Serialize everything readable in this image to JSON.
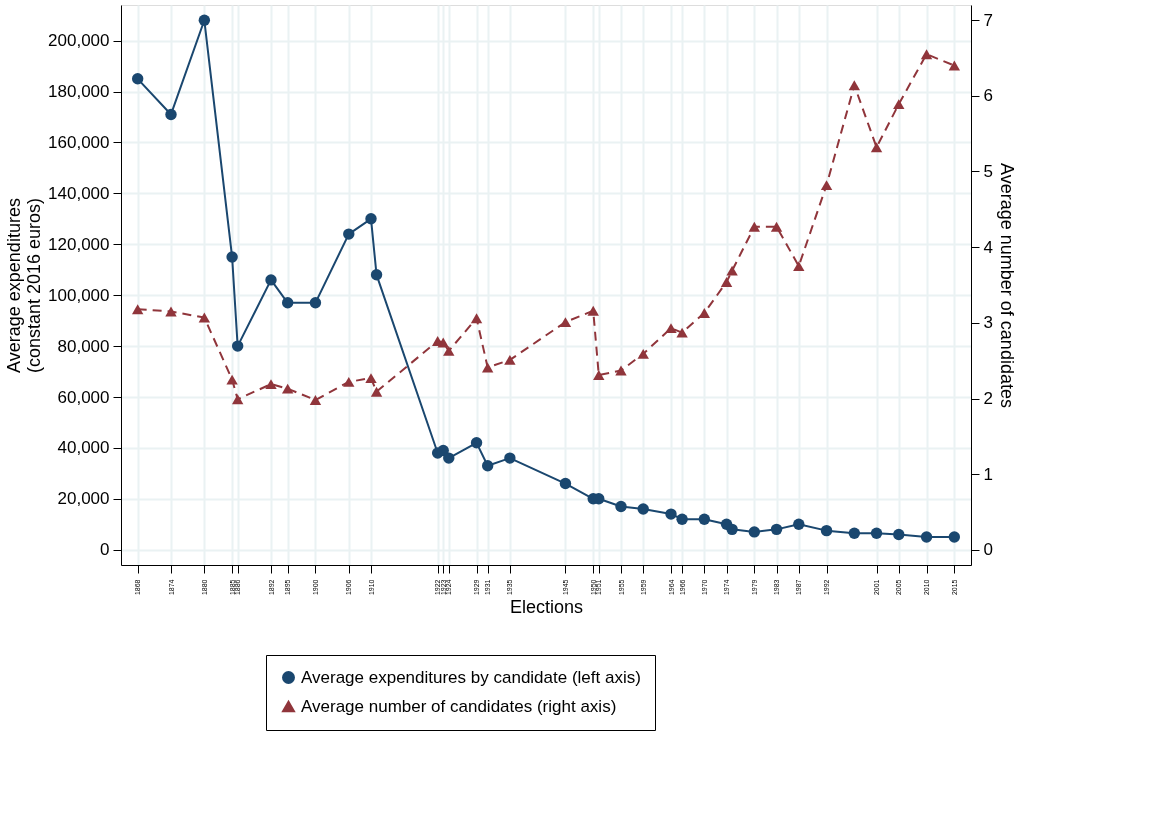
{
  "chart_data": {
    "type": "line",
    "xlabel": "Elections",
    "ylabel": "Average expenditures\n(constant 2016 euros)",
    "y2label": "Average number of candidates",
    "x": [
      1868,
      1874,
      1880,
      1885,
      1886,
      1892,
      1895,
      1900,
      1906,
      1910,
      1911,
      1922,
      1923,
      1924,
      1929,
      1931,
      1935,
      1945,
      1950,
      1951,
      1955,
      1959,
      1964,
      1966,
      1970,
      1974,
      1975,
      1979,
      1983,
      1987,
      1992,
      1997,
      2001,
      2005,
      2010,
      2015
    ],
    "series": [
      {
        "name": "Average expenditures by candidate (left axis)",
        "color": "#1a476f",
        "marker": "circle",
        "line_style": "solid",
        "values": [
          185000,
          171000,
          208000,
          115000,
          80000,
          106000,
          97000,
          97000,
          124000,
          130000,
          108000,
          38000,
          39000,
          36000,
          42000,
          33000,
          36000,
          26000,
          20000,
          20000,
          17000,
          16000,
          14000,
          12000,
          12000,
          10000,
          8000,
          7000,
          8000,
          10000,
          7500,
          6500,
          6500,
          6000,
          5000,
          5000
        ]
      },
      {
        "name": "Average number of candidates (right axis)",
        "color": "#90353b",
        "marker": "triangle",
        "line_style": "dashed",
        "axis": "y2",
        "values": [
          3.18,
          3.15,
          3.07,
          2.25,
          1.99,
          2.19,
          2.13,
          1.98,
          2.22,
          2.27,
          2.09,
          2.76,
          2.74,
          2.63,
          3.06,
          2.41,
          2.51,
          3.01,
          3.16,
          2.31,
          2.37,
          2.59,
          2.93,
          2.87,
          3.13,
          3.54,
          3.69,
          4.27,
          4.27,
          3.75,
          4.82,
          6.14,
          5.32,
          5.89,
          6.55,
          6.4
        ]
      }
    ],
    "xlim": [
      1865,
      2018
    ],
    "xticks": [
      1868,
      1874,
      1880,
      1885,
      1886,
      1892,
      1895,
      1900,
      1906,
      1910,
      1922,
      1923,
      1924,
      1929,
      1931,
      1935,
      1945,
      1950,
      1951,
      1955,
      1959,
      1964,
      1966,
      1970,
      1974,
      1979,
      1983,
      1987,
      1992,
      2001,
      2005,
      2010,
      2015
    ],
    "ylim": [
      -6000,
      214000
    ],
    "yticks": [
      0,
      {
        "value": 20000,
        "label": "20,000"
      },
      {
        "value": 40000,
        "label": "40,000"
      },
      {
        "value": 60000,
        "label": "60,000"
      },
      {
        "value": 80000,
        "label": "80,000"
      },
      {
        "value": 100000,
        "label": "100,000"
      },
      {
        "value": 120000,
        "label": "120,000"
      },
      {
        "value": 140000,
        "label": "140,000"
      },
      {
        "value": 160000,
        "label": "160,000"
      },
      {
        "value": 180000,
        "label": "180,000"
      },
      {
        "value": 200000,
        "label": "200,000"
      }
    ],
    "y2lim": [
      -0.2,
      7.2
    ],
    "y2ticks": [
      0,
      1,
      2,
      3,
      4,
      5,
      6,
      7
    ],
    "grid": true,
    "legend": "bottom"
  }
}
